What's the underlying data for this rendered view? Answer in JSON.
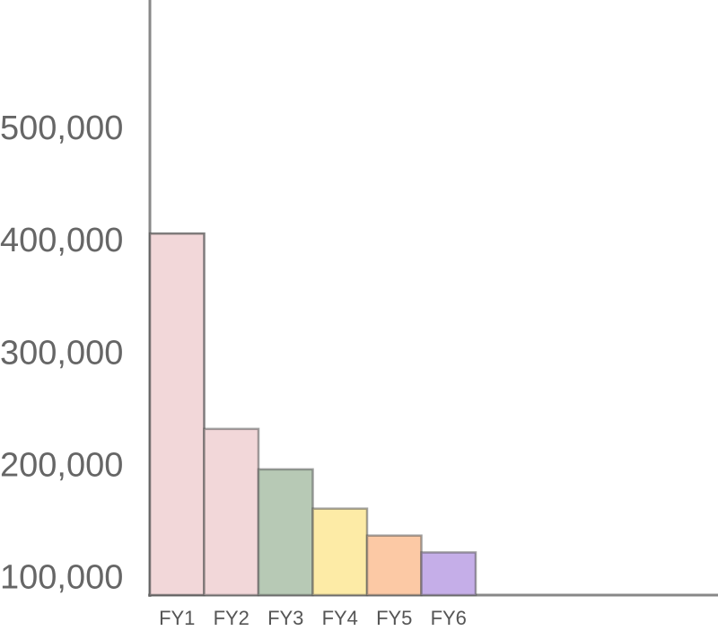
{
  "chart_data": {
    "type": "bar",
    "categories": [
      "FY1",
      "FY2",
      "FY3",
      "FY4",
      "FY5",
      "FY6"
    ],
    "values": [
      408000,
      234000,
      198000,
      163000,
      139000,
      124000
    ],
    "colors": [
      "#f2d7d9",
      "#f2d7d9",
      "#b7c9b5",
      "#fdeba6",
      "#fcc9a5",
      "#c5aee8"
    ],
    "ylim": [
      86000,
      616000
    ],
    "yticks": [
      {
        "value": 100000,
        "label": "100,000"
      },
      {
        "value": 200000,
        "label": "200,000"
      },
      {
        "value": 300000,
        "label": "300,000"
      },
      {
        "value": 400000,
        "label": "400,000"
      },
      {
        "value": 500000,
        "label": "500,000"
      }
    ],
    "grid": false
  }
}
